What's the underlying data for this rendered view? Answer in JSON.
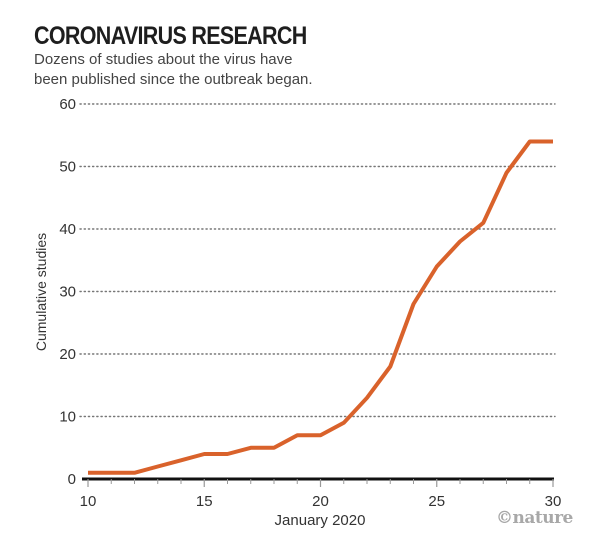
{
  "header": {
    "title": "CORONAVIRUS RESEARCH",
    "subtitle_line1": "Dozens of studies about the virus have",
    "subtitle_line2": "been published since the outbreak began."
  },
  "credit": "©nature",
  "colors": {
    "line": "#d9622b",
    "grid": "#777777",
    "axis": "#111111",
    "text": "#333333"
  },
  "chart_data": {
    "type": "line",
    "title": "CORONAVIRUS RESEARCH",
    "subtitle": "Dozens of studies about the virus have been published since the outbreak began.",
    "xlabel": "January 2020",
    "ylabel": "Cumulative studies",
    "xlim": [
      10,
      30
    ],
    "ylim": [
      0,
      60
    ],
    "xticks": [
      10,
      15,
      20,
      25,
      30
    ],
    "xminor_ticks": [
      11,
      12,
      13,
      14,
      16,
      17,
      18,
      19,
      21,
      22,
      23,
      24,
      26,
      27,
      28,
      29
    ],
    "yticks": [
      0,
      10,
      20,
      30,
      40,
      50,
      60
    ],
    "grid": "horizontal dotted",
    "series": [
      {
        "name": "Cumulative studies",
        "x": [
          10,
          11,
          12,
          13,
          14,
          15,
          16,
          17,
          18,
          19,
          20,
          21,
          22,
          23,
          24,
          25,
          26,
          27,
          28,
          29,
          30
        ],
        "values": [
          1,
          1,
          1,
          2,
          3,
          4,
          4,
          5,
          5,
          7,
          7,
          9,
          13,
          18,
          28,
          34,
          38,
          41,
          49,
          54,
          54
        ]
      }
    ]
  }
}
